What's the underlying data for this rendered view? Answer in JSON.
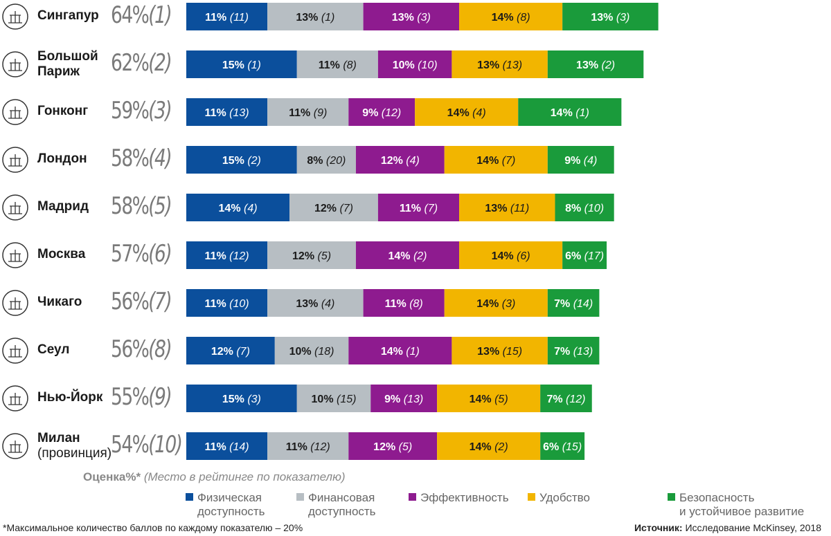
{
  "chart_data": {
    "type": "bar",
    "stacked": true,
    "orientation": "horizontal",
    "title": "",
    "categories_legend": [
      "Физическая доступность",
      "Финансовая доступность",
      "Эффективность",
      "Удобство",
      "Безопасность и устойчивое развитие"
    ],
    "colors": [
      "#0b4f9c",
      "#b7bec3",
      "#8e1b8f",
      "#f2b500",
      "#1a9b3b"
    ],
    "rows": [
      {
        "city": "Сингапур",
        "city_sub": "",
        "icon": "gardens-icon",
        "score": "64%",
        "rank": "(1)",
        "segments": [
          {
            "value": 11,
            "rank": 11
          },
          {
            "value": 13,
            "rank": 1
          },
          {
            "value": 13,
            "rank": 3
          },
          {
            "value": 14,
            "rank": 8
          },
          {
            "value": 13,
            "rank": 3
          }
        ]
      },
      {
        "city": "Большой Париж",
        "city_sub": "",
        "icon": "eiffel-tower-icon",
        "score": "62%",
        "rank": "(2)",
        "segments": [
          {
            "value": 15,
            "rank": 1
          },
          {
            "value": 11,
            "rank": 8
          },
          {
            "value": 10,
            "rank": 10
          },
          {
            "value": 13,
            "rank": 13
          },
          {
            "value": 13,
            "rank": 2
          }
        ]
      },
      {
        "city": "Гонконг",
        "city_sub": "",
        "icon": "junk-boat-icon",
        "score": "59%",
        "rank": "(3)",
        "segments": [
          {
            "value": 11,
            "rank": 13
          },
          {
            "value": 11,
            "rank": 9
          },
          {
            "value": 9,
            "rank": 12
          },
          {
            "value": 14,
            "rank": 4
          },
          {
            "value": 14,
            "rank": 1
          }
        ]
      },
      {
        "city": "Лондон",
        "city_sub": "",
        "icon": "big-ben-icon",
        "score": "58%",
        "rank": "(4)",
        "segments": [
          {
            "value": 15,
            "rank": 2
          },
          {
            "value": 8,
            "rank": 20
          },
          {
            "value": 12,
            "rank": 4
          },
          {
            "value": 14,
            "rank": 7
          },
          {
            "value": 9,
            "rank": 4
          }
        ]
      },
      {
        "city": "Мадрид",
        "city_sub": "",
        "icon": "bear-tree-icon",
        "score": "58%",
        "rank": "(5)",
        "segments": [
          {
            "value": 14,
            "rank": 4
          },
          {
            "value": 12,
            "rank": 7
          },
          {
            "value": 11,
            "rank": 7
          },
          {
            "value": 13,
            "rank": 11
          },
          {
            "value": 8,
            "rank": 10
          }
        ]
      },
      {
        "city": "Москва",
        "city_sub": "",
        "icon": "kremlin-star-icon",
        "score": "57%",
        "rank": "(6)",
        "segments": [
          {
            "value": 11,
            "rank": 12
          },
          {
            "value": 12,
            "rank": 5
          },
          {
            "value": 14,
            "rank": 2
          },
          {
            "value": 14,
            "rank": 6
          },
          {
            "value": 6,
            "rank": 17
          }
        ]
      },
      {
        "city": "Чикаго",
        "city_sub": "",
        "icon": "cloud-gate-icon",
        "score": "56%",
        "rank": "(7)",
        "segments": [
          {
            "value": 11,
            "rank": 10
          },
          {
            "value": 13,
            "rank": 4
          },
          {
            "value": 11,
            "rank": 8
          },
          {
            "value": 14,
            "rank": 3
          },
          {
            "value": 7,
            "rank": 14
          }
        ]
      },
      {
        "city": "Сеул",
        "city_sub": "",
        "icon": "pagoda-gate-icon",
        "score": "56%",
        "rank": "(8)",
        "segments": [
          {
            "value": 12,
            "rank": 7
          },
          {
            "value": 10,
            "rank": 18
          },
          {
            "value": 14,
            "rank": 1
          },
          {
            "value": 13,
            "rank": 15
          },
          {
            "value": 7,
            "rank": 13
          }
        ]
      },
      {
        "city": "Нью-Йорк",
        "city_sub": "",
        "icon": "statue-of-liberty-icon",
        "score": "55%",
        "rank": "(9)",
        "segments": [
          {
            "value": 15,
            "rank": 3
          },
          {
            "value": 10,
            "rank": 15
          },
          {
            "value": 9,
            "rank": 13
          },
          {
            "value": 14,
            "rank": 5
          },
          {
            "value": 7,
            "rank": 12
          }
        ]
      },
      {
        "city": "Милан",
        "city_sub": "(провинция)",
        "icon": "cathedral-icon",
        "score": "54%",
        "rank": "(10)",
        "segments": [
          {
            "value": 11,
            "rank": 14
          },
          {
            "value": 11,
            "rank": 12
          },
          {
            "value": 12,
            "rank": 5
          },
          {
            "value": 14,
            "rank": 2
          },
          {
            "value": 6,
            "rank": 15
          }
        ]
      }
    ]
  },
  "legend": {
    "title_bold": "Оценка%*",
    "title_italic": "(Место в рейтинге по показателю)",
    "items": [
      {
        "line1": "Физическая",
        "line2": "доступность"
      },
      {
        "line1": "Финансовая",
        "line2": "доступность"
      },
      {
        "line1": "Эффективность",
        "line2": ""
      },
      {
        "line1": "Удобство",
        "line2": ""
      },
      {
        "line1": "Безопасность",
        "line2": "и устойчивое развитие"
      }
    ]
  },
  "footnote": "*Максимальное количество баллов по каждому показателю – 20%",
  "source_label": "Источник:",
  "source_text": "Исследование McKinsey, 2018"
}
